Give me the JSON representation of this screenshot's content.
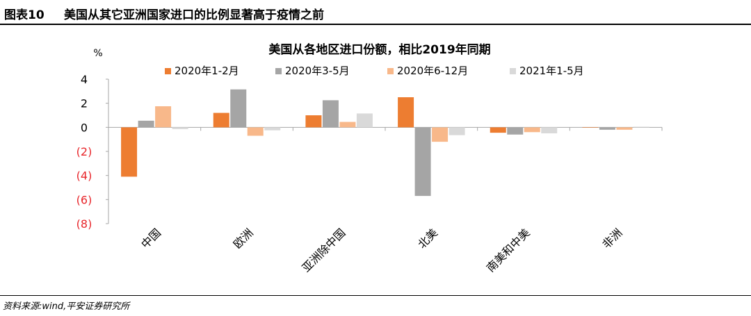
{
  "header": {
    "figure_label": "图表10",
    "figure_title": "美国从其它亚洲国家进口的比例显著高于疫情之前"
  },
  "footer": {
    "source": "资料来源:wind,平安证券研究所"
  },
  "chart_data": {
    "type": "bar",
    "title": "美国从各地区进口份额，相比2019年同期",
    "ylabel": "%",
    "ylim": [
      -8,
      4
    ],
    "yticks": [
      4,
      2,
      0,
      -2,
      -4,
      -6,
      -8
    ],
    "ytick_labels": [
      "4",
      "2",
      "0",
      "(2)",
      "(4)",
      "(6)",
      "(8)"
    ],
    "ytick_colors": [
      "#000000",
      "#000000",
      "#000000",
      "#e8262b",
      "#e8262b",
      "#e8262b",
      "#e8262b"
    ],
    "categories": [
      "中国",
      "欧洲",
      "亚洲除中国",
      "北美",
      "南美和中美",
      "非洲"
    ],
    "legend_position": "top",
    "grid": false,
    "series": [
      {
        "name": "2020年1-2月",
        "color": "#ed7d31",
        "values": [
          -4.1,
          1.2,
          1.0,
          2.5,
          -0.45,
          0.0
        ]
      },
      {
        "name": "2020年3-5月",
        "color": "#a5a5a5",
        "values": [
          0.55,
          3.15,
          2.25,
          -5.7,
          -0.6,
          -0.2
        ]
      },
      {
        "name": "2020年6-12月",
        "color": "#f8b88a",
        "values": [
          1.75,
          -0.7,
          0.45,
          -1.2,
          -0.4,
          -0.2
        ]
      },
      {
        "name": "2021年1-5月",
        "color": "#d9d9d9",
        "values": [
          -0.15,
          -0.25,
          1.15,
          -0.65,
          -0.5,
          0.05
        ]
      }
    ]
  }
}
